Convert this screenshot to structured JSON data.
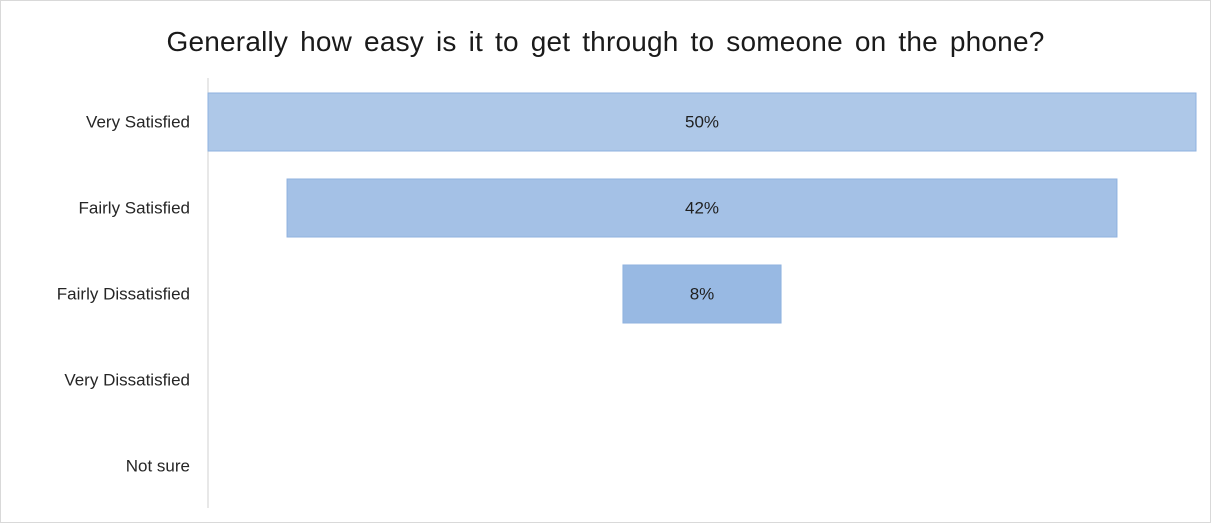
{
  "chart_data": {
    "type": "bar",
    "orientation": "horizontal",
    "variant": "funnel",
    "title": "Generally how easy is it to get through to someone on the phone?",
    "categories": [
      "Very Satisfied",
      "Fairly Satisfied",
      "Fairly Dissatisfied",
      "Very Dissatisfied",
      "Not sure"
    ],
    "values": [
      50,
      42,
      8,
      0,
      0
    ],
    "data_labels": [
      "50%",
      "42%",
      "8%",
      "",
      ""
    ],
    "unit": "%",
    "xlim": [
      0,
      50
    ],
    "grid": false,
    "legend": "none",
    "colors": {
      "bar_fill": [
        "#aec8e8",
        "#a4c1e6",
        "#98b9e3"
      ],
      "bar_stroke": "#8fb2df",
      "axis": "#d0d0d0",
      "text": "#262626"
    }
  }
}
